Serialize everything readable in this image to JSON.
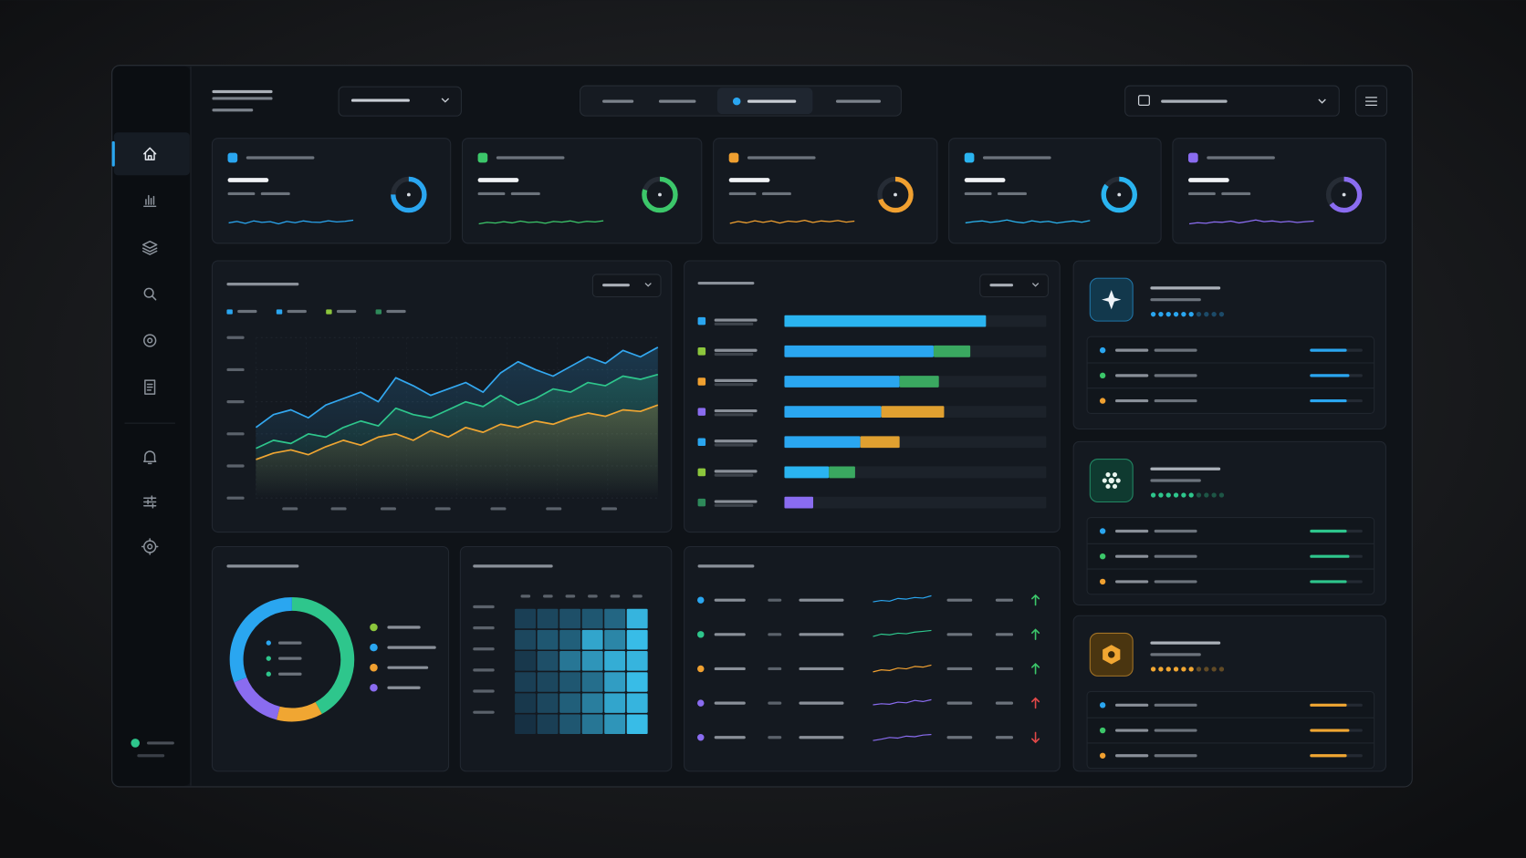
{
  "kpi_cards": [
    {
      "color": "#2aa6f0",
      "ring": 75,
      "spark": [
        40,
        55,
        35,
        60,
        45,
        52,
        30,
        55,
        42,
        60,
        48,
        45,
        62,
        50,
        56,
        68
      ]
    },
    {
      "color": "#3cc76a",
      "ring": 80,
      "spark": [
        30,
        45,
        38,
        52,
        40,
        58,
        44,
        50,
        36,
        55,
        48,
        60,
        42,
        56,
        50,
        62
      ]
    },
    {
      "color": "#f0a030",
      "ring": 70,
      "spark": [
        35,
        55,
        40,
        62,
        45,
        60,
        38,
        58,
        50,
        66,
        44,
        60,
        52,
        64,
        48,
        58
      ]
    },
    {
      "color": "#2ab4f0",
      "ring": 85,
      "spark": [
        40,
        52,
        60,
        45,
        55,
        70,
        50,
        40,
        62,
        48,
        56,
        38,
        50,
        60,
        46,
        64
      ]
    },
    {
      "color": "#8a6cf0",
      "ring": 65,
      "spark": [
        30,
        42,
        36,
        50,
        46,
        58,
        40,
        54,
        70,
        52,
        60,
        48,
        56,
        44,
        52,
        58
      ]
    }
  ],
  "line_chart": {
    "ylim": [
      0,
      100
    ],
    "series": [
      {
        "color": "#33a8f0",
        "values": [
          44,
          52,
          55,
          50,
          58,
          62,
          66,
          60,
          75,
          70,
          64,
          68,
          72,
          66,
          78,
          85,
          80,
          76,
          82,
          88,
          84,
          92,
          88,
          94
        ]
      },
      {
        "color": "#2ec68c",
        "values": [
          31,
          36,
          34,
          40,
          38,
          44,
          48,
          45,
          56,
          52,
          50,
          55,
          60,
          57,
          64,
          58,
          62,
          68,
          66,
          72,
          70,
          76,
          74,
          77
        ]
      },
      {
        "color": "#f0a632",
        "values": [
          24,
          28,
          30,
          27,
          32,
          36,
          33,
          38,
          40,
          36,
          42,
          38,
          44,
          41,
          46,
          44,
          48,
          46,
          50,
          53,
          51,
          55,
          54,
          58
        ]
      }
    ]
  },
  "bar_list": {
    "xlim": [
      0,
      100
    ],
    "rows": [
      {
        "dot": "#2aa6f0",
        "values": [
          77
        ],
        "colors": [
          "#2ab4f0"
        ]
      },
      {
        "dot": "#8cc63c",
        "values": [
          57,
          14
        ],
        "colors": [
          "#2aa6f0",
          "#3aa860"
        ]
      },
      {
        "dot": "#f0a030",
        "values": [
          44,
          15
        ],
        "colors": [
          "#2aa6f0",
          "#3aa860"
        ]
      },
      {
        "dot": "#8a6cf0",
        "values": [
          37,
          24
        ],
        "colors": [
          "#2aa6f0",
          "#e0a030"
        ]
      },
      {
        "dot": "#2aa6f0",
        "values": [
          29,
          15
        ],
        "colors": [
          "#2aa6f0",
          "#e0a030"
        ]
      },
      {
        "dot": "#8cc63c",
        "values": [
          17,
          10
        ],
        "colors": [
          "#2ab4f0",
          "#3aa860"
        ]
      },
      {
        "dot": "#2e8a5a",
        "values": [
          11
        ],
        "colors": [
          "#8a6cf0"
        ]
      }
    ]
  },
  "donut": {
    "values": [
      42,
      12,
      15,
      31
    ],
    "colors": [
      "#2ec68c",
      "#f0a632",
      "#8a6cf0",
      "#2aa6f0"
    ],
    "legend_colors": [
      "#8cc63c",
      "#2aa6f0",
      "#f0a030",
      "#8a6cf0"
    ]
  },
  "heatmap": {
    "values": [
      [
        0.15,
        0.2,
        0.25,
        0.3,
        0.4,
        0.9
      ],
      [
        0.2,
        0.3,
        0.35,
        0.8,
        0.6,
        0.95
      ],
      [
        0.1,
        0.25,
        0.5,
        0.7,
        0.85,
        0.9
      ],
      [
        0.15,
        0.2,
        0.3,
        0.45,
        0.75,
        0.95
      ],
      [
        0.1,
        0.2,
        0.35,
        0.55,
        0.8,
        0.9
      ],
      [
        0.05,
        0.15,
        0.3,
        0.5,
        0.7,
        0.95
      ]
    ]
  },
  "table": {
    "rows": [
      {
        "color": "#2aa6f0",
        "spark": [
          30,
          40,
          35,
          55,
          50,
          62,
          58,
          75
        ],
        "trend": "up",
        "trend_color": "#3cc76a"
      },
      {
        "color": "#2ec68c",
        "spark": [
          28,
          45,
          40,
          52,
          48,
          60,
          66,
          72
        ],
        "trend": "up",
        "trend_color": "#3cc76a"
      },
      {
        "color": "#f0a030",
        "spark": [
          20,
          35,
          30,
          48,
          42,
          60,
          55,
          70
        ],
        "trend": "up",
        "trend_color": "#3cc76a"
      },
      {
        "color": "#8a6cf0",
        "spark": [
          30,
          38,
          34,
          50,
          45,
          62,
          54,
          68
        ],
        "trend": "up",
        "trend_color": "#e04848"
      },
      {
        "color": "#8a6cf0",
        "spark": [
          20,
          30,
          42,
          38,
          52,
          48,
          60,
          64
        ],
        "trend": "down",
        "trend_color": "#e04848"
      }
    ]
  },
  "side_cards": [
    {
      "color": "#2aa6f0",
      "icon_bg": "#12384c",
      "rating": 6,
      "progress": [
        70,
        75,
        70
      ]
    },
    {
      "color": "#2ec68c",
      "icon_bg": "#0f3a30",
      "rating": 6,
      "progress": [
        70,
        75,
        70
      ]
    },
    {
      "color": "#f0a632",
      "icon_bg": "#4a3510",
      "rating": 6,
      "progress": [
        70,
        75,
        70
      ]
    }
  ],
  "status_color": "#2ec68c"
}
